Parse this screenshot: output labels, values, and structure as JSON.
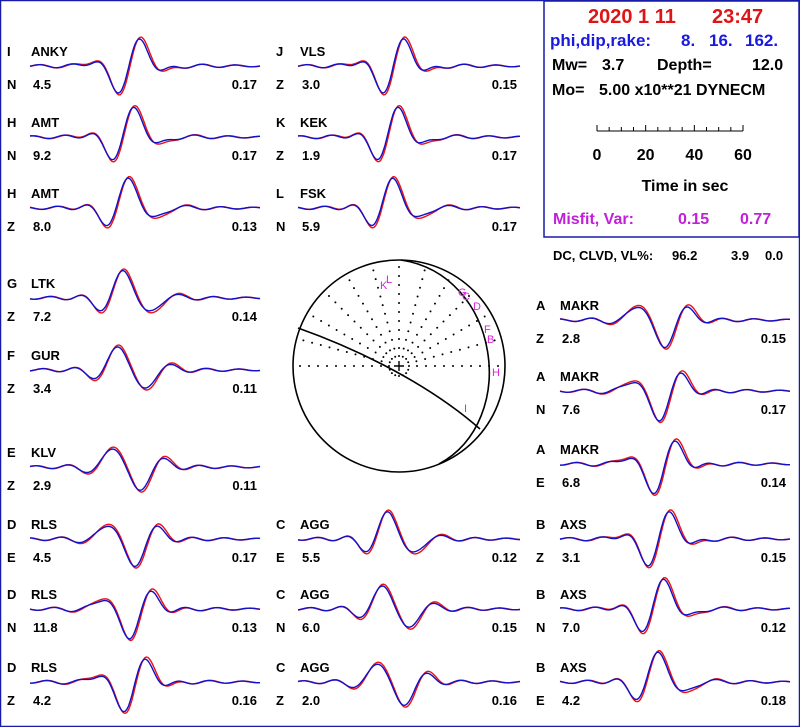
{
  "chart_data": {
    "type": "line",
    "header": {
      "date": "2020  1 11",
      "time": "23:47",
      "angles_label": "phi,dip,rake:",
      "phi": "8.",
      "dip": "16.",
      "rake": "162.",
      "mw_label": "Mw=",
      "mw": "3.7",
      "depth_label": "Depth=",
      "depth": "12.0",
      "mo_label": "Mo=",
      "mo": "5.00 x10**21 DYNECM",
      "time_axis": {
        "ticks": [
          "0",
          "20",
          "40",
          "60"
        ],
        "range": [
          0,
          60
        ],
        "label": "Time  in sec"
      },
      "misfit_label": "Misfit, Var:",
      "misfit": "0.15",
      "var": "0.77",
      "dc_label": "DC, CLVD, VL%:",
      "dc": "96.2",
      "clvd": "3.9",
      "vl": "0.0"
    },
    "legend": {
      "observed_color": "#ee1111",
      "synthetic_color": "#1111cc"
    },
    "traces": [
      {
        "code": "I",
        "station": "ANKY",
        "comp": "N",
        "amp": "4.5",
        "misfit": "0.17"
      },
      {
        "code": "H",
        "station": "AMT",
        "comp": "N",
        "amp": "9.2",
        "misfit": "0.17"
      },
      {
        "code": "H",
        "station": "AMT",
        "comp": "Z",
        "amp": "8.0",
        "misfit": "0.13"
      },
      {
        "code": "G",
        "station": "LTK",
        "comp": "Z",
        "amp": "7.2",
        "misfit": "0.14"
      },
      {
        "code": "F",
        "station": "GUR",
        "comp": "Z",
        "amp": "3.4",
        "misfit": "0.11"
      },
      {
        "code": "E",
        "station": "KLV",
        "comp": "Z",
        "amp": "2.9",
        "misfit": "0.11"
      },
      {
        "code": "D",
        "station": "RLS",
        "comp": "E",
        "amp": "4.5",
        "misfit": "0.17"
      },
      {
        "code": "D",
        "station": "RLS",
        "comp": "N",
        "amp": "11.8",
        "misfit": "0.13"
      },
      {
        "code": "D",
        "station": "RLS",
        "comp": "Z",
        "amp": "4.2",
        "misfit": "0.16"
      },
      {
        "code": "J",
        "station": "VLS",
        "comp": "Z",
        "amp": "3.0",
        "misfit": "0.15"
      },
      {
        "code": "K",
        "station": "KEK",
        "comp": "Z",
        "amp": "1.9",
        "misfit": "0.17"
      },
      {
        "code": "L",
        "station": "FSK",
        "comp": "N",
        "amp": "5.9",
        "misfit": "0.17"
      },
      {
        "code": "C",
        "station": "AGG",
        "comp": "E",
        "amp": "5.5",
        "misfit": "0.12"
      },
      {
        "code": "C",
        "station": "AGG",
        "comp": "N",
        "amp": "6.0",
        "misfit": "0.15"
      },
      {
        "code": "C",
        "station": "AGG",
        "comp": "Z",
        "amp": "2.0",
        "misfit": "0.16"
      },
      {
        "code": "A",
        "station": "MAKR",
        "comp": "Z",
        "amp": "2.8",
        "misfit": "0.15"
      },
      {
        "code": "A",
        "station": "MAKR",
        "comp": "N",
        "amp": "7.6",
        "misfit": "0.17"
      },
      {
        "code": "A",
        "station": "MAKR",
        "comp": "E",
        "amp": "6.8",
        "misfit": "0.14"
      },
      {
        "code": "B",
        "station": "AXS",
        "comp": "Z",
        "amp": "3.1",
        "misfit": "0.15"
      },
      {
        "code": "B",
        "station": "AXS",
        "comp": "N",
        "amp": "7.0",
        "misfit": "0.12"
      },
      {
        "code": "B",
        "station": "AXS",
        "comp": "E",
        "amp": "4.2",
        "misfit": "0.18"
      }
    ],
    "stereonet_labels": [
      "K",
      "L",
      "G",
      "C",
      "D",
      "F",
      "B",
      "H",
      "I"
    ]
  }
}
